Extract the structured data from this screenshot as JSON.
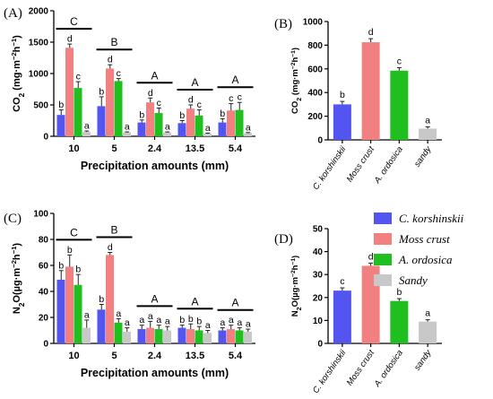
{
  "colors": {
    "C. korshinskii": "#5454f0",
    "Moss crust": "#f28080",
    "A. ordosica": "#1fbf1f",
    "Sandy": "#c8c8c8"
  },
  "legend": [
    "C. korshinskii",
    "Moss crust",
    "A. ordosica",
    "Sandy"
  ],
  "chart_data": [
    {
      "panel": "(A)",
      "type": "bar",
      "ylabel": "CO2 (mg·m⁻²h⁻¹)",
      "xlabel": "Precipitation amounts (mm)",
      "ylim": [
        0,
        2000
      ],
      "yticks": [
        "0",
        "500",
        "1000",
        "1500",
        "2000"
      ],
      "categories": [
        "10",
        "5",
        "2.4",
        "13.5",
        "5.4"
      ],
      "series": [
        {
          "name": "C. korshinskii",
          "values": [
            340,
            480,
            220,
            210,
            220
          ],
          "err": [
            80,
            150,
            40,
            40,
            60
          ],
          "letters": [
            "b",
            "b",
            "b",
            "b",
            "b"
          ]
        },
        {
          "name": "Moss crust",
          "values": [
            1410,
            1080,
            540,
            440,
            410
          ],
          "err": [
            60,
            60,
            70,
            60,
            110
          ],
          "letters": [
            "d",
            "d",
            "d",
            "d",
            "c"
          ]
        },
        {
          "name": "A. ordosica",
          "values": [
            770,
            880,
            370,
            330,
            420
          ],
          "err": [
            100,
            40,
            80,
            90,
            120
          ],
          "letters": [
            "c",
            "c",
            "c",
            "c",
            "c"
          ]
        },
        {
          "name": "Sandy",
          "values": [
            70,
            60,
            60,
            40,
            50
          ],
          "err": [
            15,
            10,
            10,
            10,
            10
          ],
          "letters": [
            "a",
            "a",
            "a",
            "a",
            "a"
          ]
        }
      ],
      "groupLetters": [
        "C",
        "B",
        "A",
        "A",
        "A"
      ]
    },
    {
      "panel": "(B)",
      "type": "bar",
      "ylabel": "CO2 (mg·m⁻²h⁻¹)",
      "ylim": [
        0,
        1000
      ],
      "yticks": [
        "0",
        "200",
        "400",
        "600",
        "800",
        "1000"
      ],
      "categories": [
        "C. korshinskii",
        "Moss crust",
        "A. ordosica",
        "sandy"
      ],
      "values": [
        300,
        825,
        585,
        95
      ],
      "err": [
        25,
        30,
        25,
        15
      ],
      "letters": [
        "b",
        "d",
        "c",
        "a"
      ]
    },
    {
      "panel": "(C)",
      "type": "bar",
      "ylabel": "N2O(µg·m⁻²h⁻¹)",
      "xlabel": "Precipitation amounts (mm)",
      "ylim": [
        0,
        100
      ],
      "yticks": [
        "0",
        "20",
        "40",
        "60",
        "80",
        "100"
      ],
      "categories": [
        "10",
        "5",
        "2.4",
        "13.5",
        "5.4"
      ],
      "series": [
        {
          "name": "C. korshinskii",
          "values": [
            49,
            26,
            11,
            12,
            10
          ],
          "err": [
            7,
            4,
            3,
            2,
            2
          ],
          "letters": [
            "b",
            "b",
            "a",
            "b",
            "a"
          ]
        },
        {
          "name": "Moss crust",
          "values": [
            59,
            68,
            12,
            11,
            11
          ],
          "err": [
            9,
            2,
            5,
            4,
            3
          ],
          "letters": [
            "b",
            "d",
            "a",
            "b",
            "a"
          ]
        },
        {
          "name": "A. ordosica",
          "values": [
            45,
            16,
            11,
            10,
            10
          ],
          "err": [
            8,
            3,
            3,
            3,
            2
          ],
          "letters": [
            "b",
            "a",
            "a",
            "b",
            "a"
          ]
        },
        {
          "name": "Sandy",
          "values": [
            12,
            9,
            10,
            8,
            9
          ],
          "err": [
            6,
            3,
            3,
            2,
            2
          ],
          "letters": [
            "a",
            "a",
            "a",
            "a",
            "a"
          ]
        }
      ],
      "groupLetters": [
        "C",
        "B",
        "A",
        "A",
        "A"
      ]
    },
    {
      "panel": "(D)",
      "type": "bar",
      "ylabel": "N2O(µg·m⁻²h⁻¹)",
      "ylim": [
        0,
        50
      ],
      "yticks": [
        "0",
        "10",
        "20",
        "30",
        "40",
        "50"
      ],
      "categories": [
        "C. korshinskii",
        "Moss crust",
        "A. ordosica",
        "sandy"
      ],
      "values": [
        23,
        33.8,
        18.5,
        9.5
      ],
      "err": [
        1.2,
        1.2,
        1.0,
        0.8
      ],
      "letters": [
        "c",
        "d",
        "b",
        "a"
      ]
    }
  ]
}
